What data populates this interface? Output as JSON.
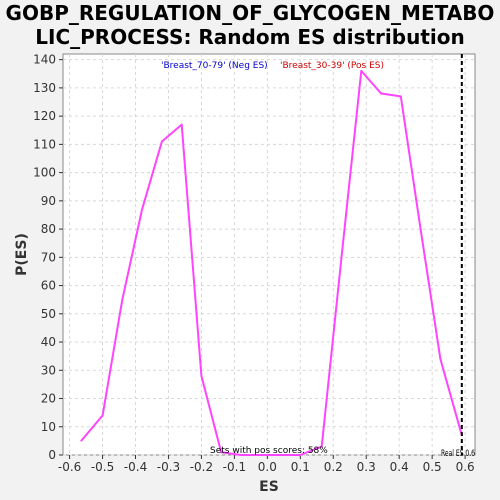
{
  "title_line1": "GOBP_REGULATION_OF_GLYCOGEN_METABO",
  "title_line2": "LIC_PROCESS: Random ES distribution",
  "colors": {
    "curve": "#ff44ff",
    "neg_label": "#0000cc",
    "pos_label": "#cc0000",
    "grid": "#d8d8d8",
    "real_es_line": "#000000",
    "background": "#f2f2f2",
    "plot_bg": "#ffffff"
  },
  "chart_data": {
    "type": "line",
    "title": "GOBP_REGULATION_OF_GLYCOGEN_METABOLIC_PROCESS: Random ES distribution",
    "xlabel": "ES",
    "ylabel": "P(ES)",
    "xlim": [
      -0.62,
      0.63
    ],
    "ylim": [
      0,
      142
    ],
    "xticks": [
      -0.6,
      -0.5,
      -0.4,
      -0.3,
      -0.2,
      -0.1,
      0.0,
      0.1,
      0.2,
      0.3,
      0.4,
      0.5,
      0.6
    ],
    "xtick_labels": [
      "-0.6",
      "-0.5",
      "-0.4",
      "-0.3",
      "-0.2",
      "-0.1",
      "0.0",
      "0.1",
      "0.2",
      "0.3",
      "0.4",
      "0.5",
      "0.6"
    ],
    "yticks": [
      0,
      10,
      20,
      30,
      40,
      50,
      60,
      70,
      80,
      90,
      100,
      110,
      120,
      130,
      140
    ],
    "ytick_labels": [
      "0",
      "10",
      "20",
      "30",
      "40",
      "50",
      "60",
      "70",
      "80",
      "90",
      "100",
      "110",
      "120",
      "130",
      "140"
    ],
    "grid": true,
    "series": [
      {
        "x": [
          -0.565,
          -0.5,
          -0.44,
          -0.38,
          -0.32,
          -0.26,
          -0.2,
          -0.14,
          -0.08,
          -0.02,
          0.04,
          0.1,
          0.165,
          0.225,
          0.285,
          0.345,
          0.405,
          0.465,
          0.525,
          0.59
        ],
        "y": [
          5,
          14,
          55,
          87,
          111,
          117,
          28,
          1,
          0,
          0,
          0,
          0,
          3,
          70,
          136,
          128,
          127,
          80,
          34,
          7
        ]
      }
    ],
    "annotations": {
      "neg_label": "'Breast_70-79' (Neg ES)",
      "pos_label": "'Breast_30-39' (Pos ES)",
      "pos_scores": "Sets with pos scores: 58%",
      "real_es": "Real ES 0.6"
    },
    "real_es": 0.59
  }
}
